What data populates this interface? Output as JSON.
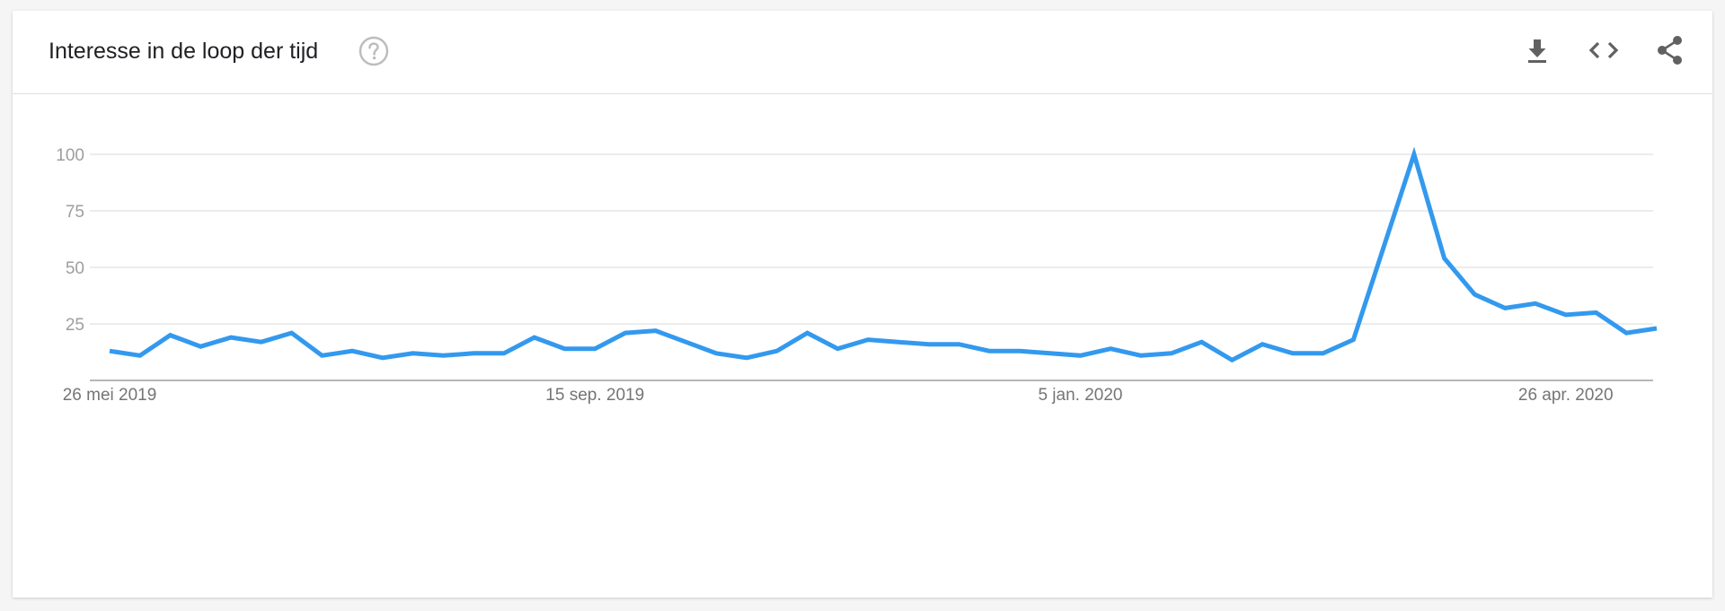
{
  "header": {
    "title": "Interesse in de loop der tijd",
    "help_icon": "help-circle-icon",
    "tools": [
      "download-icon",
      "embed-code-icon",
      "share-icon"
    ]
  },
  "colors": {
    "line": "#3399ee",
    "grid": "#e0e0e0",
    "axis": "#9e9e9e",
    "tick_text": "#9e9e9e",
    "date_text": "#757575",
    "icon": "#616161",
    "help": "#bdbdbd"
  },
  "chart_data": {
    "type": "line",
    "title": "Interesse in de loop der tijd",
    "xlabel": "",
    "ylabel": "",
    "ylim": [
      0,
      100
    ],
    "yticks": [
      25,
      50,
      75,
      100
    ],
    "xtick_labels": [
      "26 mei 2019",
      "15 sep. 2019",
      "5 jan. 2020",
      "26 apr. 2020"
    ],
    "grid": true,
    "legend": "none",
    "x_start": "2019-05-26",
    "x_end": "2020-05-31",
    "interval": "weekly",
    "series": [
      {
        "values": [
          13,
          11,
          20,
          15,
          19,
          17,
          21,
          11,
          13,
          10,
          12,
          11,
          12,
          12,
          19,
          14,
          14,
          21,
          22,
          17,
          12,
          10,
          13,
          21,
          14,
          18,
          17,
          16,
          16,
          13,
          13,
          12,
          11,
          14,
          11,
          12,
          17,
          9,
          16,
          12,
          12,
          18,
          59,
          100,
          54,
          38,
          32,
          34,
          29,
          30,
          21,
          23
        ]
      }
    ]
  }
}
